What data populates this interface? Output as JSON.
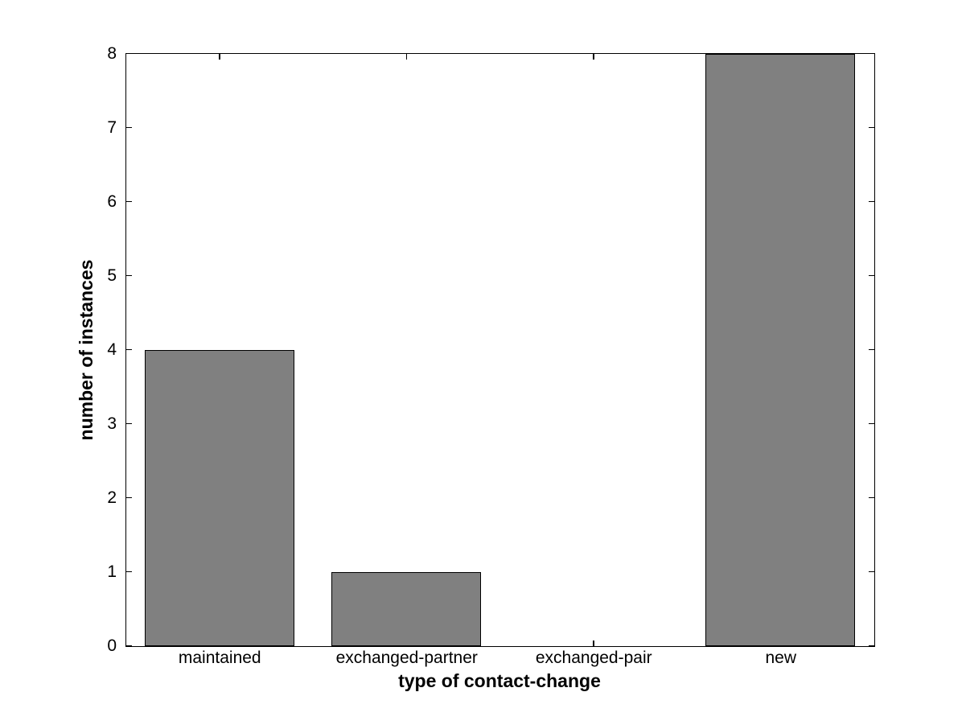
{
  "figure": {
    "background_color": "#ffffff",
    "axis_color": "#000000"
  },
  "chart_data": {
    "type": "bar",
    "title": "",
    "categories": [
      "maintained",
      "exchanged-partner",
      "exchanged-pair",
      "new"
    ],
    "values": [
      4,
      1,
      0,
      8
    ],
    "xlabel": "type of contact-change",
    "ylabel": "number of instances",
    "ylim": [
      0,
      8
    ],
    "yticks": [
      0,
      1,
      2,
      3,
      4,
      5,
      6,
      7,
      8
    ],
    "ytick_labels": [
      "0",
      "1",
      "2",
      "3",
      "4",
      "5",
      "6",
      "7",
      "8"
    ],
    "xlim": [
      0.5,
      4.5
    ],
    "bar_centers": [
      1,
      2,
      3,
      4
    ],
    "bar_width_fraction": 0.8,
    "bar_color": "#808080",
    "bar_edge_color": "#000000",
    "grid": false,
    "legend": null,
    "tick_direction": "in",
    "box": true
  }
}
